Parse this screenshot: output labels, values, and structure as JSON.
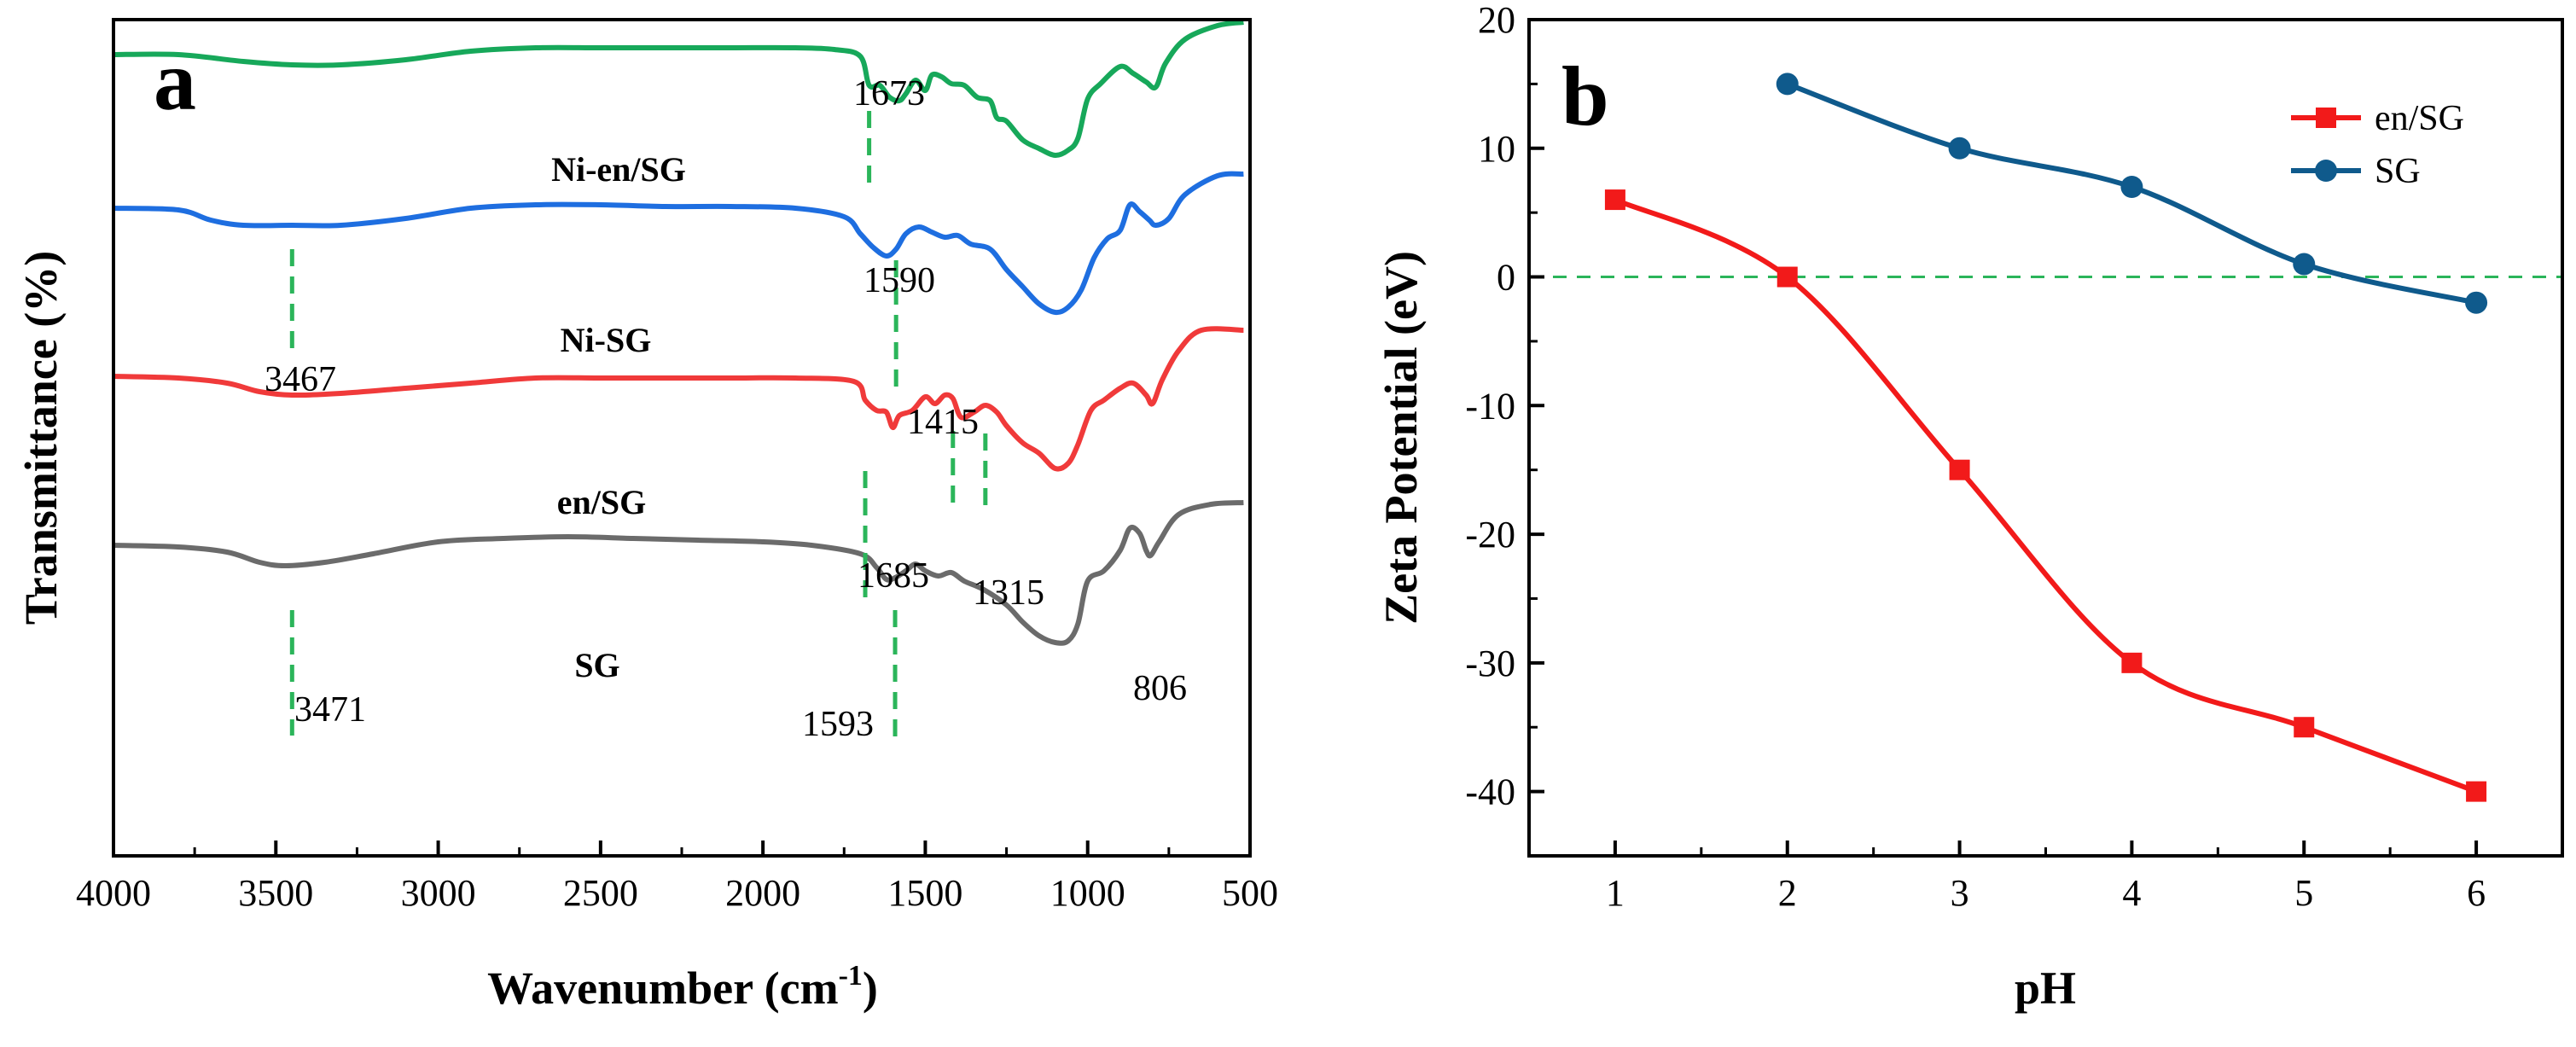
{
  "chart_data": [
    {
      "panel": "a",
      "type": "line",
      "xlabel_main": "Wavenumber (cm",
      "xlabel_sup": "-1",
      "xlabel_close": ")",
      "ylabel": "Transmittance (%)",
      "xlim": [
        4000,
        500
      ],
      "xticks": [
        "4000",
        "3500",
        "3000",
        "2500",
        "2000",
        "1500",
        "1000",
        "500"
      ],
      "series": [
        {
          "name": "Ni-en/SG",
          "color": "#17a85a",
          "points": [
            [
              4000,
              0.43
            ],
            [
              3800,
              0.43
            ],
            [
              3600,
              0.39
            ],
            [
              3450,
              0.37
            ],
            [
              3300,
              0.37
            ],
            [
              3100,
              0.4
            ],
            [
              2900,
              0.45
            ],
            [
              2700,
              0.47
            ],
            [
              2500,
              0.47
            ],
            [
              2300,
              0.47
            ],
            [
              2100,
              0.47
            ],
            [
              1900,
              0.47
            ],
            [
              1780,
              0.46
            ],
            [
              1700,
              0.42
            ],
            [
              1673,
              0.25
            ],
            [
              1640,
              0.25
            ],
            [
              1610,
              0.18
            ],
            [
              1580,
              0.16
            ],
            [
              1560,
              0.2
            ],
            [
              1530,
              0.28
            ],
            [
              1500,
              0.22
            ],
            [
              1480,
              0.31
            ],
            [
              1450,
              0.3
            ],
            [
              1420,
              0.26
            ],
            [
              1380,
              0.25
            ],
            [
              1340,
              0.18
            ],
            [
              1300,
              0.16
            ],
            [
              1280,
              0.06
            ],
            [
              1250,
              0.04
            ],
            [
              1200,
              -0.07
            ],
            [
              1150,
              -0.12
            ],
            [
              1100,
              -0.16
            ],
            [
              1060,
              -0.13
            ],
            [
              1030,
              -0.06
            ],
            [
              1000,
              0.17
            ],
            [
              960,
              0.26
            ],
            [
              900,
              0.36
            ],
            [
              860,
              0.32
            ],
            [
              820,
              0.27
            ],
            [
              790,
              0.24
            ],
            [
              760,
              0.38
            ],
            [
              700,
              0.52
            ],
            [
              600,
              0.6
            ],
            [
              520,
              0.62
            ]
          ]
        },
        {
          "name": "Ni-SG",
          "color": "#1e6ee0",
          "points": [
            [
              4000,
              0.48
            ],
            [
              3800,
              0.47
            ],
            [
              3700,
              0.41
            ],
            [
              3600,
              0.38
            ],
            [
              3450,
              0.38
            ],
            [
              3300,
              0.38
            ],
            [
              3100,
              0.42
            ],
            [
              2900,
              0.48
            ],
            [
              2700,
              0.5
            ],
            [
              2500,
              0.5
            ],
            [
              2300,
              0.49
            ],
            [
              2100,
              0.49
            ],
            [
              1900,
              0.48
            ],
            [
              1750,
              0.43
            ],
            [
              1700,
              0.33
            ],
            [
              1660,
              0.25
            ],
            [
              1620,
              0.2
            ],
            [
              1590,
              0.24
            ],
            [
              1560,
              0.33
            ],
            [
              1520,
              0.37
            ],
            [
              1480,
              0.34
            ],
            [
              1440,
              0.31
            ],
            [
              1400,
              0.32
            ],
            [
              1360,
              0.27
            ],
            [
              1300,
              0.24
            ],
            [
              1250,
              0.12
            ],
            [
              1200,
              0.02
            ],
            [
              1150,
              -0.08
            ],
            [
              1100,
              -0.13
            ],
            [
              1060,
              -0.1
            ],
            [
              1020,
              0.0
            ],
            [
              980,
              0.19
            ],
            [
              940,
              0.3
            ],
            [
              900,
              0.35
            ],
            [
              870,
              0.5
            ],
            [
              840,
              0.46
            ],
            [
              810,
              0.41
            ],
            [
              790,
              0.38
            ],
            [
              750,
              0.42
            ],
            [
              700,
              0.56
            ],
            [
              600,
              0.67
            ],
            [
              520,
              0.68
            ]
          ]
        },
        {
          "name": "en/SG",
          "color": "#f03a3a",
          "points": [
            [
              4000,
              0.47
            ],
            [
              3800,
              0.46
            ],
            [
              3650,
              0.43
            ],
            [
              3550,
              0.38
            ],
            [
              3450,
              0.36
            ],
            [
              3300,
              0.37
            ],
            [
              3100,
              0.4
            ],
            [
              2900,
              0.43
            ],
            [
              2700,
              0.46
            ],
            [
              2500,
              0.46
            ],
            [
              2300,
              0.46
            ],
            [
              2100,
              0.46
            ],
            [
              1900,
              0.46
            ],
            [
              1720,
              0.44
            ],
            [
              1685,
              0.33
            ],
            [
              1650,
              0.27
            ],
            [
              1620,
              0.26
            ],
            [
              1600,
              0.17
            ],
            [
              1580,
              0.24
            ],
            [
              1540,
              0.27
            ],
            [
              1500,
              0.35
            ],
            [
              1470,
              0.31
            ],
            [
              1440,
              0.36
            ],
            [
              1415,
              0.34
            ],
            [
              1390,
              0.23
            ],
            [
              1350,
              0.26
            ],
            [
              1315,
              0.3
            ],
            [
              1280,
              0.26
            ],
            [
              1250,
              0.18
            ],
            [
              1200,
              0.08
            ],
            [
              1150,
              0.02
            ],
            [
              1100,
              -0.07
            ],
            [
              1060,
              -0.04
            ],
            [
              1030,
              0.07
            ],
            [
              990,
              0.27
            ],
            [
              950,
              0.33
            ],
            [
              900,
              0.4
            ],
            [
              860,
              0.43
            ],
            [
              820,
              0.36
            ],
            [
              800,
              0.31
            ],
            [
              770,
              0.45
            ],
            [
              720,
              0.62
            ],
            [
              650,
              0.74
            ],
            [
              520,
              0.74
            ]
          ]
        },
        {
          "name": "SG",
          "color": "#6b6b6b",
          "points": [
            [
              4000,
              0.48
            ],
            [
              3800,
              0.47
            ],
            [
              3650,
              0.44
            ],
            [
              3550,
              0.38
            ],
            [
              3471,
              0.36
            ],
            [
              3350,
              0.38
            ],
            [
              3200,
              0.43
            ],
            [
              3000,
              0.5
            ],
            [
              2800,
              0.52
            ],
            [
              2600,
              0.53
            ],
            [
              2400,
              0.52
            ],
            [
              2200,
              0.51
            ],
            [
              2000,
              0.5
            ],
            [
              1850,
              0.48
            ],
            [
              1700,
              0.43
            ],
            [
              1650,
              0.35
            ],
            [
              1620,
              0.28
            ],
            [
              1593,
              0.29
            ],
            [
              1560,
              0.33
            ],
            [
              1530,
              0.37
            ],
            [
              1500,
              0.33
            ],
            [
              1460,
              0.3
            ],
            [
              1420,
              0.32
            ],
            [
              1380,
              0.27
            ],
            [
              1320,
              0.22
            ],
            [
              1250,
              0.13
            ],
            [
              1200,
              0.03
            ],
            [
              1150,
              -0.05
            ],
            [
              1100,
              -0.09
            ],
            [
              1060,
              -0.08
            ],
            [
              1030,
              0.02
            ],
            [
              1000,
              0.27
            ],
            [
              950,
              0.33
            ],
            [
              900,
              0.45
            ],
            [
              870,
              0.58
            ],
            [
              840,
              0.55
            ],
            [
              820,
              0.45
            ],
            [
              806,
              0.42
            ],
            [
              780,
              0.5
            ],
            [
              720,
              0.66
            ],
            [
              620,
              0.72
            ],
            [
              520,
              0.73
            ]
          ]
        }
      ],
      "series_labels": [
        {
          "text": "Ni-en/SG"
        },
        {
          "text": "Ni-SG"
        },
        {
          "text": "en/SG"
        },
        {
          "text": "SG"
        }
      ],
      "peak_annotations": [
        {
          "text": "1673",
          "x": 1673
        },
        {
          "text": "1590",
          "x": 1590
        },
        {
          "text": "3467",
          "x": 3450
        },
        {
          "text": "1415",
          "x": 1415
        },
        {
          "text": "1685",
          "x": 1685
        },
        {
          "text": "1315",
          "x": 1315
        },
        {
          "text": "3471",
          "x": 3450
        },
        {
          "text": "1593",
          "x": 1593
        },
        {
          "text": "806",
          "x": 806
        }
      ]
    },
    {
      "panel": "b",
      "type": "line",
      "xlabel": "pH",
      "ylabel": "Zeta Potential (eV)",
      "xlim": [
        0.5,
        6.5
      ],
      "ylim": [
        -45,
        20
      ],
      "xticks": [
        1,
        2,
        3,
        4,
        5,
        6
      ],
      "yticks": [
        20,
        10,
        0,
        -10,
        -20,
        -30,
        -40
      ],
      "legend_position": "top-right",
      "reference_line_y": 0,
      "series": [
        {
          "name": "en/SG",
          "color": "#f21a1a",
          "marker": "square",
          "x": [
            1,
            2,
            3,
            4,
            5,
            6
          ],
          "y": [
            6,
            0,
            -15,
            -30,
            -35,
            -40
          ]
        },
        {
          "name": "SG",
          "color": "#0f5a8c",
          "marker": "circle",
          "x": [
            2,
            3,
            4,
            5,
            6
          ],
          "y": [
            15,
            10,
            7,
            1,
            -2
          ]
        }
      ]
    }
  ]
}
